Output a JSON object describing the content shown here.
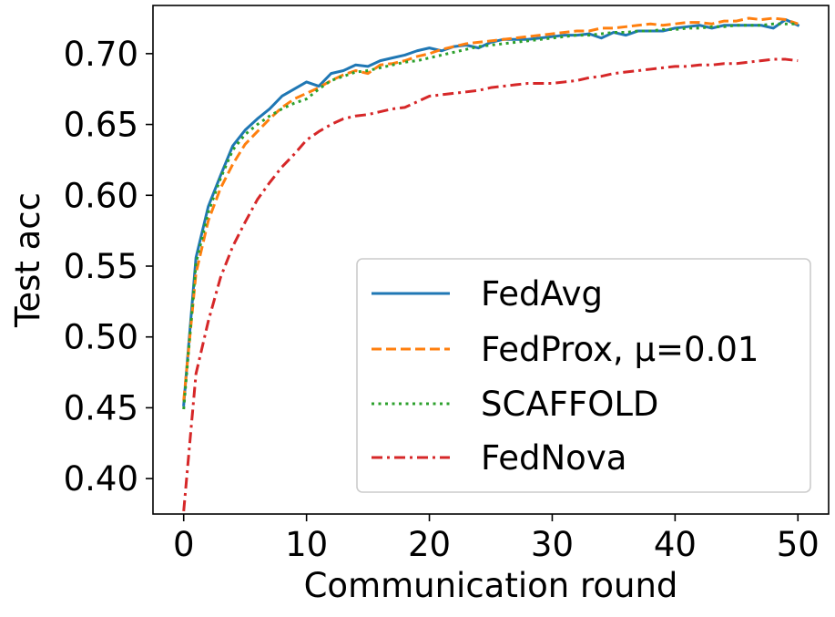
{
  "chart_data": {
    "type": "line",
    "title": "",
    "xlabel": "Communication round",
    "ylabel": "Test acc",
    "xlim": [
      -2.5,
      52.5
    ],
    "ylim": [
      0.375,
      0.734
    ],
    "xticks": [
      0,
      10,
      20,
      30,
      40,
      50
    ],
    "xtick_labels": [
      "0",
      "10",
      "20",
      "30",
      "40",
      "50"
    ],
    "yticks": [
      0.4,
      0.45,
      0.5,
      0.55,
      0.6,
      0.65,
      0.7
    ],
    "ytick_labels": [
      "0.40",
      "0.45",
      "0.50",
      "0.55",
      "0.60",
      "0.65",
      "0.70"
    ],
    "grid": false,
    "legend_position": "lower-right",
    "x": [
      0,
      1,
      2,
      3,
      4,
      5,
      6,
      7,
      8,
      9,
      10,
      11,
      12,
      13,
      14,
      15,
      16,
      17,
      18,
      19,
      20,
      21,
      22,
      23,
      24,
      25,
      26,
      27,
      28,
      29,
      30,
      31,
      32,
      33,
      34,
      35,
      36,
      37,
      38,
      39,
      40,
      41,
      42,
      43,
      44,
      45,
      46,
      47,
      48,
      49,
      50
    ],
    "series": [
      {
        "name": "FedAvg",
        "color": "#1f77b4",
        "style": "solid",
        "values": [
          0.452,
          0.556,
          0.592,
          0.614,
          0.635,
          0.646,
          0.654,
          0.661,
          0.67,
          0.675,
          0.68,
          0.677,
          0.686,
          0.688,
          0.692,
          0.691,
          0.695,
          0.697,
          0.699,
          0.702,
          0.704,
          0.702,
          0.705,
          0.706,
          0.704,
          0.708,
          0.71,
          0.71,
          0.71,
          0.711,
          0.712,
          0.713,
          0.713,
          0.714,
          0.711,
          0.715,
          0.713,
          0.716,
          0.716,
          0.716,
          0.718,
          0.719,
          0.72,
          0.718,
          0.72,
          0.72,
          0.72,
          0.72,
          0.718,
          0.724,
          0.72
        ]
      },
      {
        "name": "FedProx, μ=0.01",
        "color": "#ff7f0e",
        "style": "dashed",
        "values": [
          0.455,
          0.545,
          0.582,
          0.605,
          0.622,
          0.636,
          0.645,
          0.654,
          0.662,
          0.668,
          0.672,
          0.676,
          0.681,
          0.685,
          0.688,
          0.686,
          0.692,
          0.693,
          0.695,
          0.698,
          0.7,
          0.703,
          0.705,
          0.707,
          0.708,
          0.709,
          0.71,
          0.711,
          0.712,
          0.713,
          0.714,
          0.715,
          0.716,
          0.716,
          0.718,
          0.718,
          0.719,
          0.72,
          0.721,
          0.72,
          0.721,
          0.722,
          0.722,
          0.721,
          0.723,
          0.723,
          0.725,
          0.724,
          0.725,
          0.724,
          0.721
        ]
      },
      {
        "name": "SCAFFOLD",
        "color": "#2ca02c",
        "style": "dotted",
        "values": [
          0.449,
          0.552,
          0.588,
          0.612,
          0.632,
          0.643,
          0.65,
          0.656,
          0.661,
          0.665,
          0.668,
          0.675,
          0.681,
          0.684,
          0.687,
          0.688,
          0.69,
          0.692,
          0.694,
          0.695,
          0.697,
          0.699,
          0.701,
          0.703,
          0.705,
          0.706,
          0.707,
          0.708,
          0.709,
          0.71,
          0.711,
          0.712,
          0.713,
          0.713,
          0.714,
          0.715,
          0.715,
          0.716,
          0.716,
          0.717,
          0.717,
          0.718,
          0.718,
          0.719,
          0.719,
          0.72,
          0.72,
          0.72,
          0.721,
          0.721,
          0.721
        ]
      },
      {
        "name": "FedNova",
        "color": "#d62728",
        "style": "dashdot",
        "values": [
          0.377,
          0.474,
          0.511,
          0.542,
          0.564,
          0.581,
          0.597,
          0.609,
          0.62,
          0.629,
          0.639,
          0.645,
          0.65,
          0.654,
          0.656,
          0.657,
          0.659,
          0.661,
          0.662,
          0.666,
          0.67,
          0.671,
          0.672,
          0.673,
          0.674,
          0.676,
          0.677,
          0.678,
          0.679,
          0.679,
          0.679,
          0.68,
          0.681,
          0.683,
          0.684,
          0.686,
          0.687,
          0.688,
          0.689,
          0.69,
          0.691,
          0.691,
          0.692,
          0.692,
          0.693,
          0.693,
          0.694,
          0.695,
          0.696,
          0.696,
          0.695
        ]
      }
    ]
  }
}
